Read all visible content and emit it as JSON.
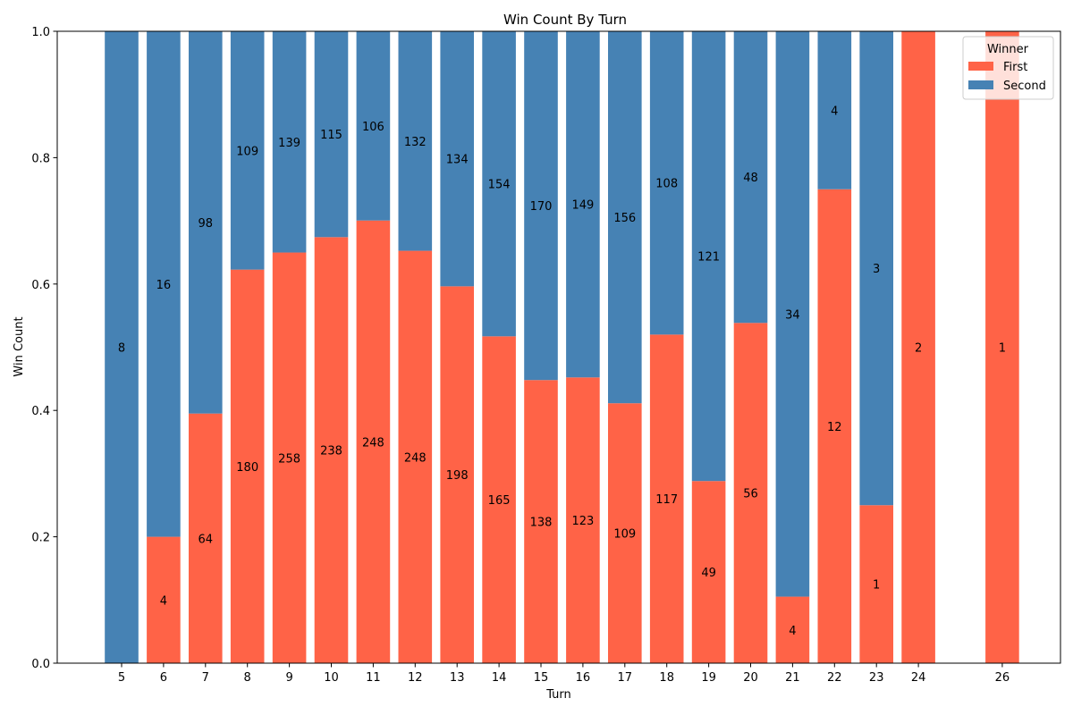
{
  "chart_data": {
    "type": "bar",
    "stacked": true,
    "normalized": true,
    "title": "Win Count By Turn",
    "xlabel": "Turn",
    "ylabel": "Win Count",
    "ylim": [
      0,
      1.0
    ],
    "yticks": [
      "0.0",
      "0.2",
      "0.4",
      "0.6",
      "0.8",
      "1.0"
    ],
    "grid": false,
    "legend": {
      "title": "Winner",
      "placement": "top-right"
    },
    "x": [
      5,
      6,
      7,
      8,
      9,
      10,
      11,
      12,
      13,
      14,
      15,
      16,
      17,
      18,
      19,
      20,
      21,
      22,
      23,
      24,
      26
    ],
    "categories": [
      "5",
      "6",
      "7",
      "8",
      "9",
      "10",
      "11",
      "12",
      "13",
      "14",
      "15",
      "16",
      "17",
      "18",
      "19",
      "20",
      "21",
      "22",
      "23",
      "24",
      "26"
    ],
    "series": [
      {
        "name": "First",
        "color": "#ff6347",
        "values": [
          0,
          4,
          64,
          180,
          258,
          238,
          248,
          248,
          198,
          165,
          138,
          123,
          109,
          117,
          49,
          56,
          4,
          12,
          1,
          2,
          1
        ]
      },
      {
        "name": "Second",
        "color": "#4682b4",
        "values": [
          8,
          16,
          98,
          109,
          139,
          115,
          106,
          132,
          134,
          154,
          170,
          149,
          156,
          108,
          121,
          48,
          34,
          4,
          3,
          0,
          0
        ]
      }
    ]
  }
}
